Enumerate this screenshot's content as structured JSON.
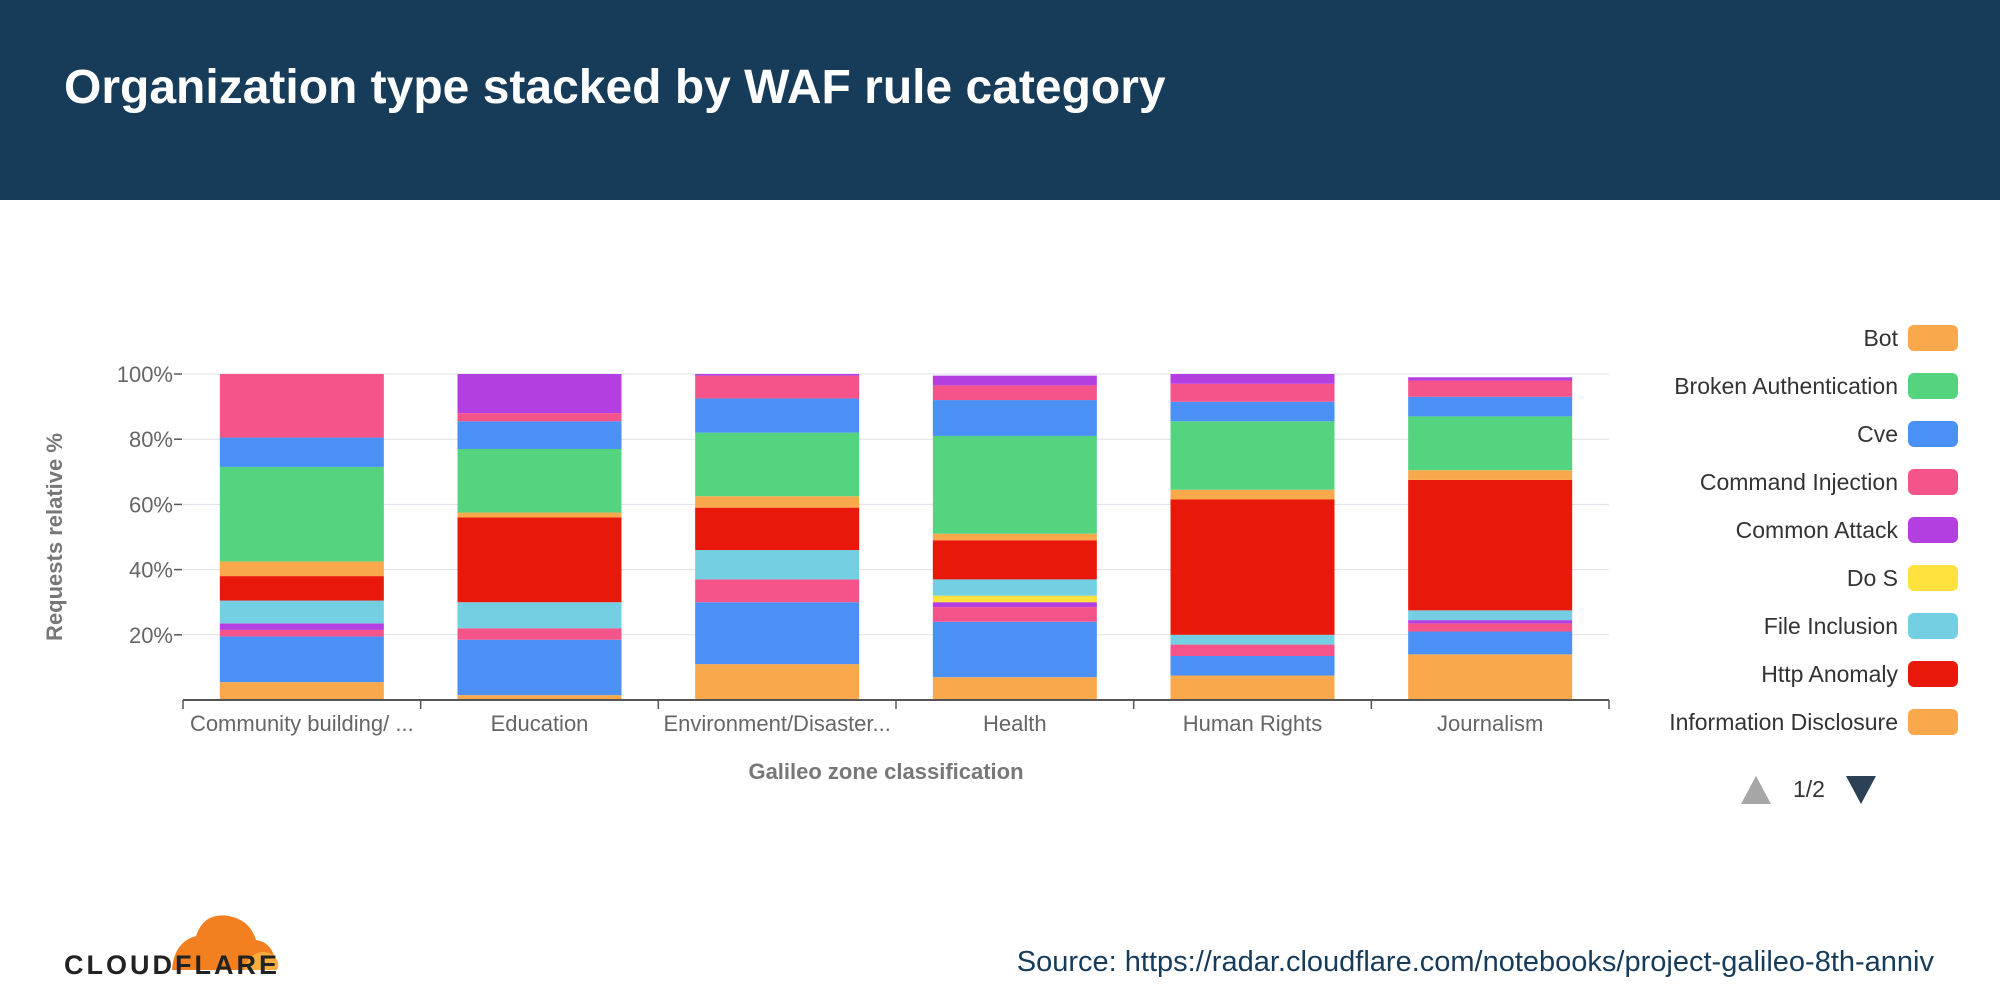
{
  "title": "Organization type stacked by WAF rule category",
  "source": "Source: https://radar.cloudflare.com/notebooks/project-galileo-8th-anniv",
  "logo_text": "CLOUDFLARE",
  "legend": {
    "pager": "1/2"
  },
  "chart_data": {
    "type": "bar",
    "stacked": true,
    "title": "Organization type stacked by WAF rule category",
    "xlabel": "Galileo zone classification",
    "ylabel": "Requests relative %",
    "ylim": [
      0,
      100
    ],
    "yticks": [
      20,
      40,
      60,
      80,
      100
    ],
    "ytick_labels": [
      "20%",
      "40%",
      "60%",
      "80%",
      "100%"
    ],
    "grid": true,
    "legend_position": "right",
    "categories": [
      "Community building/ ...",
      "Education",
      "Environment/Disaster...",
      "Health",
      "Human Rights",
      "Journalism"
    ],
    "series": [
      {
        "name": "Bot",
        "color": "#f9a94b",
        "values": [
          5.5,
          1.5,
          11,
          7,
          7.5,
          14
        ]
      },
      {
        "name": "Cve",
        "color": "#4a90f5",
        "values": [
          14,
          17,
          19,
          17,
          6,
          7
        ]
      },
      {
        "name": "Command Injection",
        "color": "#f5548a",
        "values": [
          2,
          3.5,
          7,
          4.5,
          3.5,
          2.5
        ]
      },
      {
        "name": "Common Attack",
        "color": "#b43fe0",
        "values": [
          2,
          0,
          0,
          1.5,
          0,
          1
        ]
      },
      {
        "name": "Do S",
        "color": "#ffe23e",
        "values": [
          0,
          0,
          0,
          2,
          0,
          0
        ]
      },
      {
        "name": "File Inclusion",
        "color": "#74cfe3",
        "values": [
          7,
          8,
          9,
          5,
          3,
          3
        ]
      },
      {
        "name": "Http Anomaly",
        "color": "#e8180a",
        "values": [
          7.5,
          26,
          13,
          12,
          41.5,
          40
        ]
      },
      {
        "name": "Information Disclosure",
        "color": "#f9a94b",
        "values": [
          4.5,
          1.5,
          3.5,
          2,
          3,
          3
        ]
      },
      {
        "name": "Broken Authentication",
        "color": "#54d47f",
        "values": [
          29,
          19.5,
          19.5,
          30,
          21,
          16.5
        ]
      },
      {
        "name": "Cve",
        "color": "#4a90f5",
        "values": [
          9,
          8.5,
          10.5,
          11,
          6,
          6
        ]
      },
      {
        "name": "Command Injection",
        "color": "#f5548a",
        "values": [
          19.5,
          2.5,
          7,
          4.5,
          5.5,
          5
        ]
      },
      {
        "name": "Common Attack",
        "color": "#b43fe0",
        "values": [
          0,
          12,
          0.5,
          3,
          3,
          1
        ]
      }
    ],
    "legend_entries": [
      {
        "name": "Bot",
        "color": "#f9a94b"
      },
      {
        "name": "Broken Authentication",
        "color": "#54d47f"
      },
      {
        "name": "Cve",
        "color": "#4a90f5"
      },
      {
        "name": "Command Injection",
        "color": "#f5548a"
      },
      {
        "name": "Common Attack",
        "color": "#b43fe0"
      },
      {
        "name": "Do S",
        "color": "#ffe23e"
      },
      {
        "name": "File Inclusion",
        "color": "#74cfe3"
      },
      {
        "name": "Http Anomaly",
        "color": "#e8180a"
      },
      {
        "name": "Information Disclosure",
        "color": "#f9a94b"
      }
    ]
  }
}
